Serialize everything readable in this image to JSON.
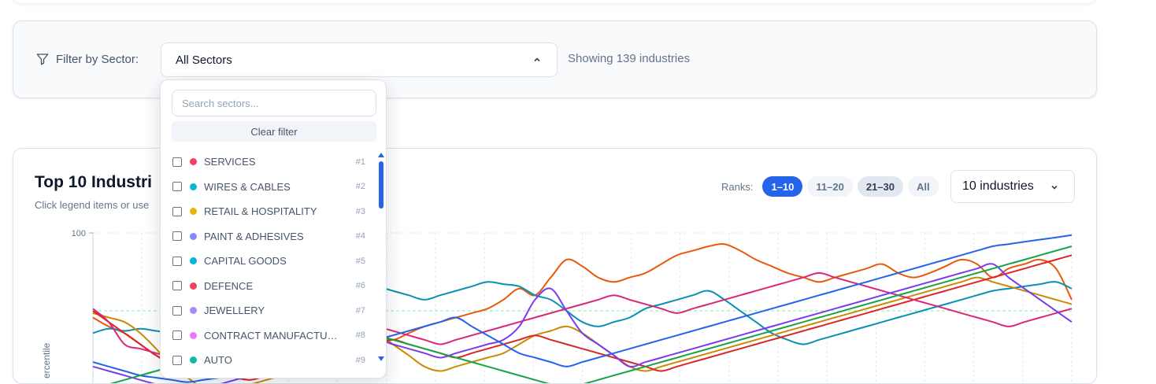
{
  "filter": {
    "label": "Filter by Sector:",
    "selected": "All Sectors",
    "showing": "Showing 139 industries"
  },
  "dropdown": {
    "search_placeholder": "Search sectors...",
    "clear_label": "Clear filter",
    "items": [
      {
        "name": "SERVICES",
        "rank": "#1",
        "color": "#f43f5e"
      },
      {
        "name": "WIRES & CABLES",
        "rank": "#2",
        "color": "#06b6d4"
      },
      {
        "name": "RETAIL & HOSPITALITY",
        "rank": "#3",
        "color": "#eab308"
      },
      {
        "name": "PAINT & ADHESIVES",
        "rank": "#4",
        "color": "#818cf8"
      },
      {
        "name": "CAPITAL GOODS",
        "rank": "#5",
        "color": "#06b6d4"
      },
      {
        "name": "DEFENCE",
        "rank": "#6",
        "color": "#f43f5e"
      },
      {
        "name": "JEWELLERY",
        "rank": "#7",
        "color": "#a78bfa"
      },
      {
        "name": "CONTRACT MANUFACTURING",
        "rank": "#8",
        "color": "#e879f9"
      },
      {
        "name": "AUTO",
        "rank": "#9",
        "color": "#14b8a6"
      }
    ]
  },
  "chart": {
    "title": "Top 10 Industri",
    "subtitle": "Click legend items or use",
    "ranks_label": "Ranks:",
    "rank_tabs": [
      "1–10",
      "11–20",
      "21–30",
      "All"
    ],
    "count_selected": "10 industries"
  },
  "chart_data": {
    "type": "line",
    "ylabel": "ercentile",
    "y_ticks": [
      "100"
    ],
    "ylim": [
      0,
      100
    ],
    "grid": true,
    "reference_line": 65,
    "x": [
      0,
      1,
      2,
      3,
      4,
      5,
      6,
      7,
      8,
      9,
      10,
      11,
      12,
      13,
      14,
      15,
      16,
      17,
      18,
      19,
      20,
      21,
      22,
      23,
      24,
      25,
      26,
      27,
      28,
      29,
      30,
      31,
      32,
      33,
      34,
      35,
      36,
      37,
      38,
      39,
      40,
      41,
      42,
      43,
      44,
      45,
      46,
      47,
      48,
      49,
      50,
      51,
      52,
      53,
      54,
      55,
      56,
      57,
      58,
      59,
      60,
      61,
      62
    ],
    "series": [
      {
        "color": "#ea580c",
        "values": [
          62,
          58,
          55,
          50,
          45,
          40,
          35,
          38,
          42,
          44,
          46,
          48,
          50,
          52,
          55,
          60,
          58,
          56,
          54,
          52,
          55,
          58,
          60,
          62,
          64,
          66,
          70,
          75,
          72,
          80,
          88,
          85,
          80,
          78,
          80,
          82,
          86,
          90,
          92,
          94,
          95,
          92,
          88,
          85,
          82,
          80,
          78,
          80,
          82,
          84,
          86,
          82,
          80,
          82,
          85,
          88,
          86,
          80,
          84,
          86,
          88,
          84,
          70
        ]
      },
      {
        "color": "#0891b2",
        "values": [
          55,
          57,
          56,
          57,
          56,
          55,
          54,
          56,
          60,
          64,
          68,
          72,
          74,
          76,
          78,
          80,
          79,
          78,
          76,
          74,
          72,
          70,
          72,
          74,
          76,
          78,
          77,
          76,
          72,
          70,
          65,
          60,
          58,
          60,
          62,
          66,
          68,
          70,
          72,
          74,
          70,
          65,
          60,
          55,
          52,
          50,
          52,
          54,
          56,
          58,
          60,
          62,
          64,
          66,
          68,
          70,
          72,
          74,
          75,
          76,
          77,
          78,
          75
        ]
      },
      {
        "color": "#ca8a04",
        "values": [
          64,
          62,
          60,
          55,
          48,
          40,
          35,
          30,
          28,
          30,
          32,
          34,
          36,
          38,
          40,
          42,
          44,
          50,
          55,
          50,
          45,
          40,
          38,
          40,
          42,
          44,
          46,
          50,
          54,
          56,
          58,
          55,
          50,
          45,
          40,
          38,
          40,
          42,
          44,
          46,
          48,
          50,
          52,
          54,
          56,
          58,
          60,
          62,
          64,
          66,
          68,
          70,
          72,
          74,
          76,
          78,
          80,
          78,
          76,
          74,
          72,
          70,
          68
        ]
      },
      {
        "color": "#dc2626",
        "values": [
          65,
          60,
          55,
          50,
          45,
          42,
          40,
          38,
          36,
          35,
          34,
          36,
          38,
          40,
          42,
          44,
          46,
          48,
          50,
          52,
          50,
          48,
          46,
          44,
          46,
          48,
          50,
          52,
          54,
          52,
          50,
          48,
          46,
          44,
          42,
          40,
          38,
          40,
          42,
          44,
          46,
          48,
          50,
          52,
          54,
          56,
          58,
          60,
          62,
          64,
          66,
          68,
          70,
          72,
          74,
          76,
          78,
          80,
          82,
          84,
          86,
          88,
          90
        ]
      },
      {
        "color": "#db2777",
        "values": [
          66,
          60,
          50,
          48,
          46,
          44,
          42,
          40,
          42,
          44,
          46,
          48,
          50,
          52,
          54,
          56,
          58,
          60,
          58,
          56,
          54,
          52,
          50,
          52,
          54,
          56,
          58,
          60,
          62,
          64,
          66,
          68,
          70,
          72,
          70,
          68,
          66,
          64,
          66,
          68,
          70,
          72,
          74,
          76,
          78,
          80,
          82,
          80,
          78,
          76,
          74,
          72,
          70,
          68,
          66,
          64,
          62,
          60,
          58,
          60,
          62,
          64,
          66
        ]
      },
      {
        "color": "#7c3aed",
        "values": [
          40,
          38,
          36,
          34,
          32,
          30,
          28,
          30,
          32,
          34,
          36,
          38,
          40,
          42,
          44,
          46,
          48,
          50,
          52,
          50,
          48,
          46,
          44,
          46,
          48,
          50,
          52,
          58,
          70,
          75,
          65,
          55,
          50,
          45,
          40,
          42,
          44,
          46,
          48,
          50,
          52,
          54,
          56,
          58,
          60,
          62,
          64,
          66,
          68,
          70,
          72,
          74,
          76,
          78,
          80,
          82,
          84,
          86,
          80,
          75,
          70,
          65,
          60
        ]
      },
      {
        "color": "#2563eb",
        "values": [
          42,
          40,
          38,
          36,
          35,
          34,
          33,
          34,
          35,
          36,
          37,
          38,
          40,
          42,
          44,
          46,
          48,
          50,
          52,
          54,
          56,
          58,
          60,
          62,
          58,
          54,
          50,
          46,
          44,
          42,
          40,
          42,
          44,
          46,
          48,
          50,
          52,
          54,
          56,
          58,
          60,
          62,
          64,
          66,
          68,
          70,
          72,
          74,
          76,
          78,
          80,
          82,
          84,
          86,
          88,
          90,
          92,
          94,
          95,
          96,
          97,
          98,
          99
        ]
      },
      {
        "color": "#16a34a",
        "values": [
          30,
          32,
          34,
          36,
          38,
          40,
          42,
          44,
          46,
          48,
          50,
          52,
          54,
          56,
          58,
          60,
          58,
          56,
          54,
          52,
          50,
          48,
          46,
          44,
          42,
          40,
          38,
          36,
          34,
          32,
          30,
          32,
          34,
          36,
          38,
          40,
          42,
          44,
          46,
          48,
          50,
          52,
          54,
          56,
          58,
          60,
          62,
          64,
          66,
          68,
          70,
          72,
          74,
          76,
          78,
          80,
          82,
          84,
          86,
          88,
          90,
          92,
          94
        ]
      }
    ]
  }
}
